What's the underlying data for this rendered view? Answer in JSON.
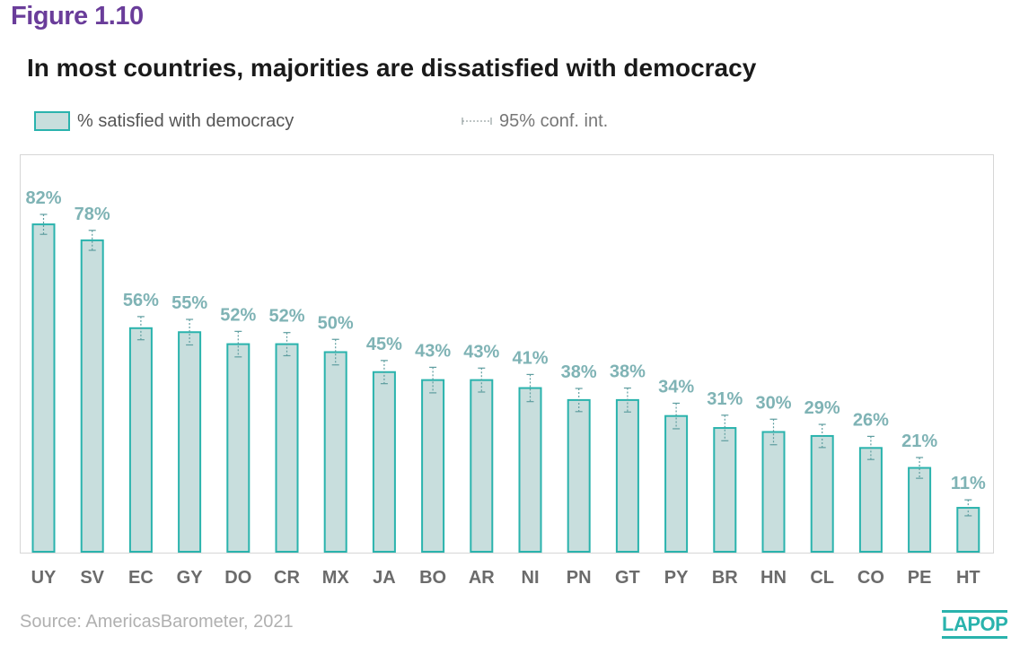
{
  "figure_label": "Figure 1.10",
  "source": "Source: AmericasBarometer, 2021",
  "logo_text": "LAPOP",
  "colors": {
    "bar_fill": "#c8dedd",
    "bar_stroke": "#2ab3ad",
    "data_label": "#7fb3b5",
    "tick_label": "#6b6b6b",
    "figure_label": "#6a3d9a"
  },
  "chart_data": {
    "type": "bar",
    "title": "In most countries, majorities are dissatisfied with democracy",
    "legend": {
      "series_label": "% satisfied with democracy",
      "ci_label": "95% conf. int.",
      "placement": "top-left"
    },
    "categories": [
      "UY",
      "SV",
      "EC",
      "GY",
      "DO",
      "CR",
      "MX",
      "JA",
      "BO",
      "AR",
      "NI",
      "PN",
      "GT",
      "PY",
      "BR",
      "HN",
      "CL",
      "CO",
      "PE",
      "HT"
    ],
    "series": [
      {
        "name": "% satisfied with democracy",
        "values": [
          82,
          78,
          56,
          55,
          52,
          52,
          50,
          45,
          43,
          43,
          41,
          38,
          38,
          34,
          31,
          30,
          29,
          26,
          21,
          11
        ],
        "data_labels": [
          "82%",
          "78%",
          "56%",
          "55%",
          "52%",
          "52%",
          "50%",
          "45%",
          "43%",
          "43%",
          "41%",
          "38%",
          "38%",
          "34%",
          "31%",
          "30%",
          "29%",
          "26%",
          "21%",
          "11%"
        ]
      }
    ],
    "ci_halfwidth": [
      2.5,
      2.5,
      2.9,
      3.2,
      3.2,
      2.9,
      3.2,
      2.9,
      3.2,
      3.0,
      3.4,
      2.9,
      3.0,
      3.2,
      3.2,
      3.2,
      2.9,
      2.9,
      2.6,
      2.0
    ],
    "ylim": [
      0,
      100
    ],
    "grid": false,
    "xlabel": "",
    "ylabel": ""
  }
}
